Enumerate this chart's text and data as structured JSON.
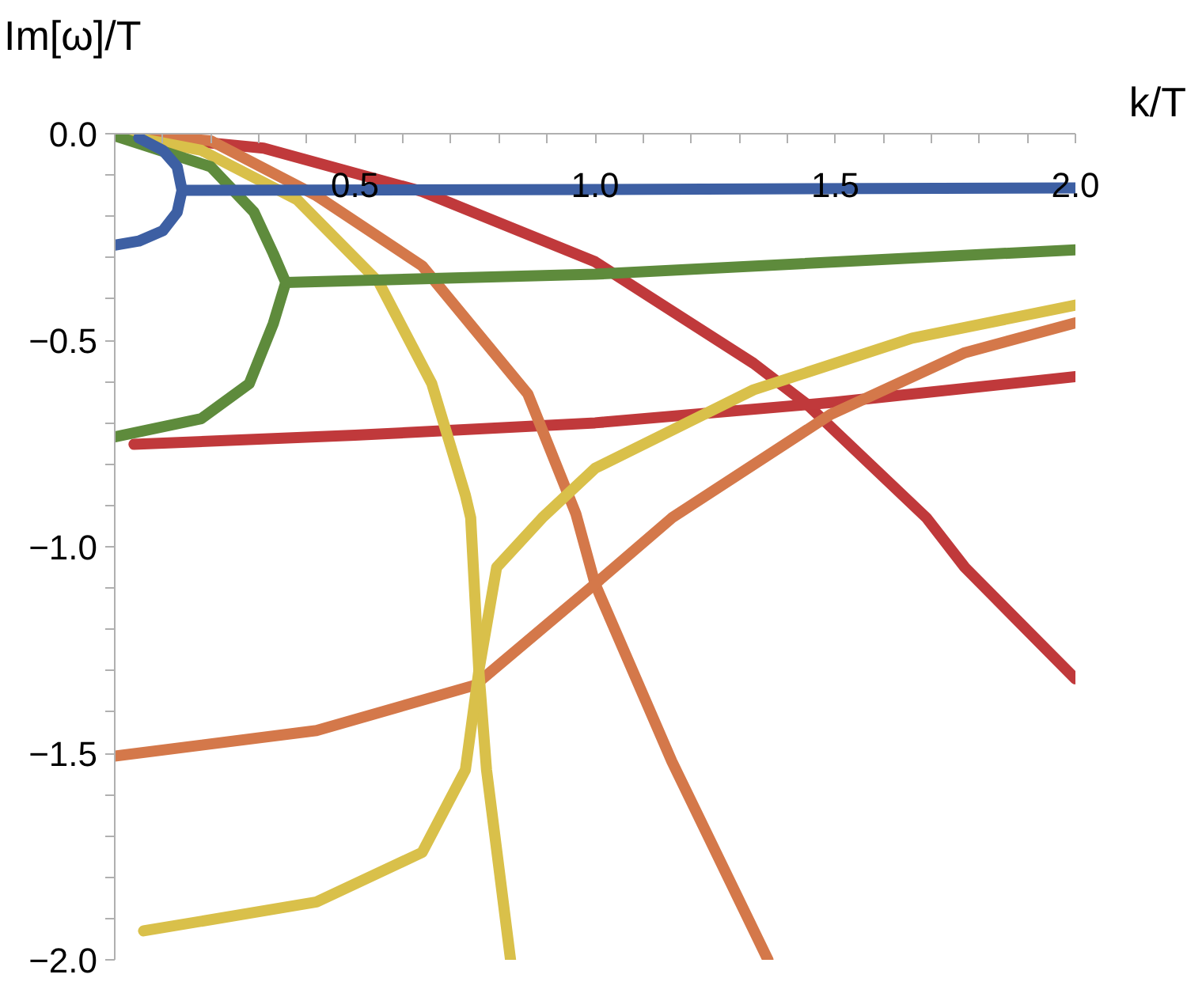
{
  "chart_data": {
    "type": "line",
    "xlabel": "k/T",
    "ylabel": "Im[ω]/T",
    "xlim": [
      0,
      2
    ],
    "ylim": [
      -2,
      0
    ],
    "grid": false,
    "line_style": "solid",
    "marker": "none",
    "xticks": [
      {
        "value": 0.1,
        "label": null
      },
      {
        "value": 0.2,
        "label": null
      },
      {
        "value": 0.3,
        "label": null
      },
      {
        "value": 0.4,
        "label": null
      },
      {
        "value": 0.5,
        "label": "0.5"
      },
      {
        "value": 0.6,
        "label": null
      },
      {
        "value": 0.7,
        "label": null
      },
      {
        "value": 0.8,
        "label": null
      },
      {
        "value": 0.9,
        "label": null
      },
      {
        "value": 1,
        "label": "1.0"
      },
      {
        "value": 1.1,
        "label": null
      },
      {
        "value": 1.2,
        "label": null
      },
      {
        "value": 1.3,
        "label": null
      },
      {
        "value": 1.4,
        "label": null
      },
      {
        "value": 1.5,
        "label": "1.5"
      },
      {
        "value": 1.6,
        "label": null
      },
      {
        "value": 1.7,
        "label": null
      },
      {
        "value": 1.8,
        "label": null
      },
      {
        "value": 1.9,
        "label": null
      },
      {
        "value": 2,
        "label": "2.0"
      }
    ],
    "yticks": [
      {
        "value": 0,
        "label": "0.0"
      },
      {
        "value": -0.1,
        "label": null
      },
      {
        "value": -0.2,
        "label": null
      },
      {
        "value": -0.3,
        "label": null
      },
      {
        "value": -0.4,
        "label": null
      },
      {
        "value": -0.5,
        "label": "−0.5"
      },
      {
        "value": -0.6,
        "label": null
      },
      {
        "value": -0.7,
        "label": null
      },
      {
        "value": -0.8,
        "label": null
      },
      {
        "value": -0.9,
        "label": null
      },
      {
        "value": -1,
        "label": "−1.0"
      },
      {
        "value": -1.1,
        "label": null
      },
      {
        "value": -1.2,
        "label": null
      },
      {
        "value": -1.3,
        "label": null
      },
      {
        "value": -1.4,
        "label": null
      },
      {
        "value": -1.5,
        "label": "−1.5"
      },
      {
        "value": -1.6,
        "label": null
      },
      {
        "value": -1.7,
        "label": null
      },
      {
        "value": -1.8,
        "label": null
      },
      {
        "value": -1.9,
        "label": null
      },
      {
        "value": -2,
        "label": "−2.0"
      }
    ],
    "series": [
      {
        "color": "#c0393b",
        "x": [
          0,
          0.31,
          0.64,
          1.0,
          1.33,
          1.44,
          1.69,
          1.77,
          2.0
        ],
        "values": [
          0,
          -0.035,
          -0.14,
          -0.31,
          -0.556,
          -0.654,
          -0.93,
          -1.05,
          -1.32
        ]
      },
      {
        "color": "#c0393b",
        "x": [
          0.04,
          0.5,
          1.0,
          1.5,
          2.0
        ],
        "values": [
          -0.752,
          -0.73,
          -0.7,
          -0.65,
          -0.588
        ]
      },
      {
        "color": "#d4784a",
        "x": [
          0,
          0.2,
          0.42,
          0.64,
          0.86,
          0.96,
          1.0,
          1.16,
          1.36
        ],
        "values": [
          0,
          -0.017,
          -0.15,
          -0.32,
          -0.63,
          -0.92,
          -1.09,
          -1.52,
          -2.0
        ]
      },
      {
        "color": "#d4784a",
        "x": [
          0,
          0.42,
          0.75,
          1.0,
          1.16,
          1.49,
          1.77,
          2.0
        ],
        "values": [
          -1.507,
          -1.445,
          -1.335,
          -1.09,
          -0.93,
          -0.68,
          -0.53,
          -0.458
        ]
      },
      {
        "color": "#d9c04a",
        "x": [
          0,
          0.18,
          0.38,
          0.55,
          0.66,
          0.73,
          0.741,
          0.758,
          0.774,
          0.824
        ],
        "values": [
          0,
          -0.04,
          -0.16,
          -0.36,
          -0.605,
          -0.875,
          -0.93,
          -1.3,
          -1.54,
          -2.0
        ]
      },
      {
        "color": "#d9c04a",
        "x": [
          0.06,
          0.42,
          0.64,
          0.73,
          0.758,
          0.795,
          0.89,
          1.0,
          1.33,
          1.66,
          2.0
        ],
        "values": [
          -1.93,
          -1.86,
          -1.74,
          -1.54,
          -1.3,
          -1.05,
          -0.93,
          -0.81,
          -0.62,
          -0.495,
          -0.415
        ]
      },
      {
        "color": "#5e8b3c",
        "x": [
          0,
          0.2,
          0.29,
          0.33,
          0.356,
          0.33,
          0.28,
          0.18,
          0
        ],
        "values": [
          -0.005,
          -0.08,
          -0.19,
          -0.29,
          -0.36,
          -0.46,
          -0.605,
          -0.69,
          -0.734
        ]
      },
      {
        "color": "#5e8b3c",
        "x": [
          0.356,
          1.0,
          2.0
        ],
        "values": [
          -0.36,
          -0.34,
          -0.281
        ]
      },
      {
        "color": "#3d5fa3",
        "x": [
          0.05,
          0.1,
          0.13,
          0.14,
          0.13,
          0.1,
          0.05,
          0
        ],
        "values": [
          -0.01,
          -0.04,
          -0.08,
          -0.137,
          -0.19,
          -0.235,
          -0.26,
          -0.27
        ]
      },
      {
        "color": "#3d5fa3",
        "x": [
          0.14,
          1.0,
          2.0
        ],
        "values": [
          -0.137,
          -0.135,
          -0.131
        ]
      }
    ]
  }
}
